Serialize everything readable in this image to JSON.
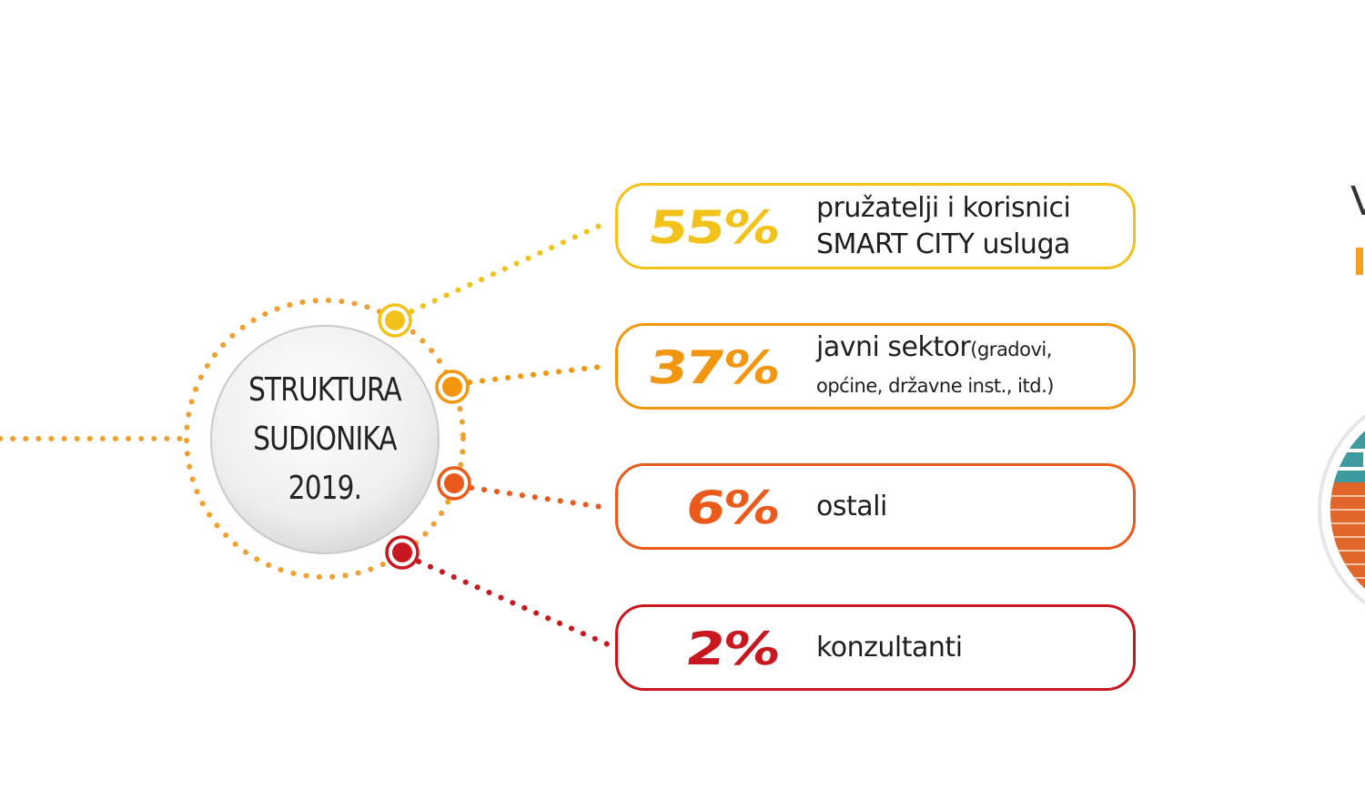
{
  "center": {
    "line1": "STRUKTURA",
    "line2": "SUDIONIKA",
    "line3": "2019."
  },
  "segments": [
    {
      "percent": "55%",
      "value": 55,
      "line1": "pružatelji i korisnici",
      "line2": "SMART CITY usluga",
      "color": "#f2c21b"
    },
    {
      "percent": "37%",
      "value": 37,
      "line1": "javni sektor",
      "line1_small": "(gradovi,",
      "line2": "općine, državne inst., itd.)",
      "color": "#f2960f"
    },
    {
      "percent": "6%",
      "value": 6,
      "line1": "ostali",
      "color": "#ea5a1a"
    },
    {
      "percent": "2%",
      "value": 2,
      "line1": "konzultanti",
      "color": "#c8171e"
    }
  ],
  "edge": {
    "letter": "V"
  }
}
